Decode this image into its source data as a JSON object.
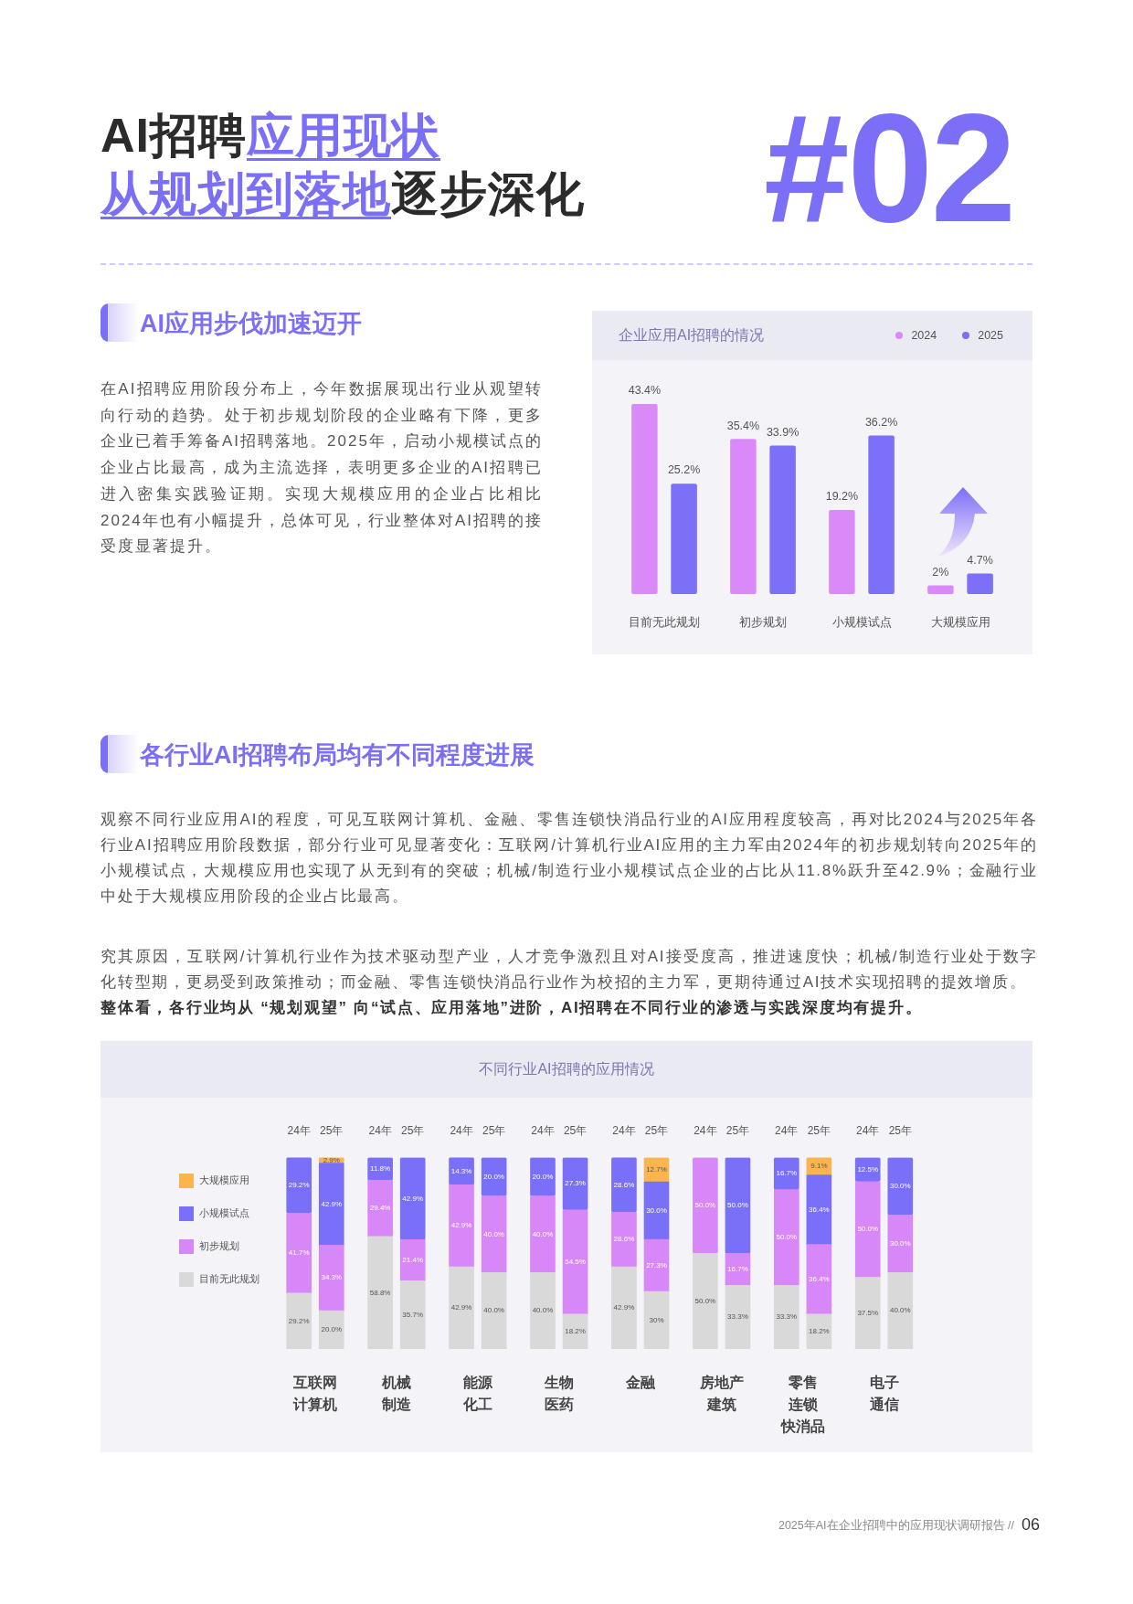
{
  "chart_data": [
    {
      "type": "bar",
      "title": "企业应用AI招聘的情况",
      "categories": [
        "目前无此规划",
        "初步规划",
        "小规模试点",
        "大规模应用"
      ],
      "series": [
        {
          "name": "2024",
          "color": "#d98af8",
          "values": [
            43.4,
            35.4,
            19.2,
            2
          ],
          "value_labels": [
            "43.4%",
            "35.4%",
            "19.2%",
            "2%"
          ]
        },
        {
          "name": "2025",
          "color": "#7b70f7",
          "values": [
            25.2,
            33.9,
            36.2,
            4.7
          ],
          "value_labels": [
            "25.2%",
            "33.9%",
            "36.2%",
            "4.7%"
          ]
        }
      ],
      "legend": "top right",
      "annotations": [
        "AI招聘",
        "应用现状",
        "从规划到落地",
        "逐步深化",
        "#02",
        "AI应用步伐加速迈开",
        "在AI招聘应用阶段分布上，今年数据展现出行业从观望转向行动的趋势。处于初步规划阶段的企业略有下降，更多企业已着手筹备AI招聘落地。2025年，启动小规模试点的企业占比最高，成为主流选择，表明更多企业的AI招聘已进入密集实践验证期。实现大规模应用的企业占比相比2024年也有小幅提升，总体可见，行业整体对AI招聘的接受度显著提升。",
        "各行业AI招聘布局均有不同程度进展",
        "观察不同行业应用AI的程度，可见互联网计算机、金融、零售连锁快消品行业的AI应用程度较高，再对比2024与2025年各行业AI招聘应用阶段数据，部分行业可见显著变化：互联网/计算机行业AI应用的主力军由2024年的初步规划转向2025年的小规模试点，大规模应用也实现了从无到有的突破；机械/制造行业小规模试点企业的占比从11.8%跃升至42.9%；金融行业中处于大规模应用阶段的企业占比最高。",
        "究其原因，互联网/计算机行业作为技术驱动型产业，人才竞争激烈且对AI接受度高，推进速度快；机械/制造行业处于数字化转型期，更易受到政策推动；而金融、零售连锁快消品行业作为校招的主力军，更期待通过AI技术实现招聘的提效增质。",
        "整体看，各行业均从 “规划观望” 向“试点、应用落地”进阶，AI招聘在不同行业的渗透与实践深度均有提升。",
        "2025年AI在企业招聘中的应用现状调研报告 //",
        "06"
      ]
    },
    {
      "type": "bar",
      "title": "不同行业AI招聘的应用情况",
      "stacked": true,
      "categories": [
        "24年",
        "25年",
        "24年",
        "25年",
        "24年",
        "25年",
        "24年",
        "25年",
        "24年",
        "25年",
        "24年",
        "25年",
        "24年",
        "25年",
        "24年",
        "25年"
      ],
      "series": [
        {
          "name": "目前无此规划",
          "color": "#d9d9d9",
          "values": [
            29.2,
            20.0,
            58.8,
            35.7,
            42.9,
            40.0,
            40.0,
            18.2,
            42.9,
            30,
            50.0,
            33.3,
            33.3,
            18.2,
            37.5,
            40.0
          ],
          "value_labels": [
            "29.2%",
            "20.0%",
            "58.8%",
            "35.7%",
            "42.9%",
            "40.0%",
            "40.0%",
            "18.2%",
            "42.9%",
            "30%",
            "50.0%",
            "33.3%",
            "33.3%",
            "18.2%",
            "37.5%",
            "40.0%"
          ]
        },
        {
          "name": "初步规划",
          "color": "#d887f9",
          "values": [
            41.7,
            34.3,
            29.4,
            21.4,
            42.9,
            40.0,
            40.0,
            54.5,
            28.6,
            27.3,
            50.0,
            16.7,
            50.0,
            36.4,
            50.0,
            30.0
          ],
          "value_labels": [
            "41.7%",
            "34.3%",
            "29.4%",
            "21.4%",
            "42.9%",
            "40.0%",
            "40.0%",
            "54.5%",
            "28.6%",
            "27.3%",
            "50.0%",
            "16.7%",
            "50.0%",
            "36.4%",
            "50.0%",
            "30.0%"
          ]
        },
        {
          "name": "小规模试点",
          "color": "#7a6ff9",
          "values": [
            29.2,
            42.9,
            11.8,
            42.9,
            14.3,
            20.0,
            20.0,
            27.3,
            28.6,
            30.0,
            null,
            50.0,
            16.7,
            36.4,
            12.5,
            30.0
          ],
          "value_labels": [
            "29.2%",
            "42.9%",
            "11.8%",
            "42.9%",
            "14.3%",
            "20.0%",
            "20.0%",
            "27.3%",
            "28.6%",
            "30.0%",
            null,
            "50.0%",
            "16.7%",
            "36.4%",
            "12.5%",
            "30.0%"
          ]
        },
        {
          "name": "大规模应用",
          "color": "#fbb54f",
          "values": [
            null,
            2.9,
            null,
            null,
            null,
            null,
            null,
            null,
            null,
            12.7,
            null,
            null,
            null,
            9.1,
            null,
            null
          ],
          "value_labels": [
            null,
            "2.9%",
            null,
            null,
            null,
            null,
            null,
            null,
            null,
            "12.7%",
            null,
            null,
            null,
            "9.1%",
            null,
            null
          ]
        }
      ],
      "legend": "left",
      "annotations": [
        "互联网计算机",
        "机械制造",
        "能源化工",
        "生物医药",
        "金融",
        "房地产建筑",
        "零售连锁快消品",
        "电子通信"
      ]
    }
  ]
}
